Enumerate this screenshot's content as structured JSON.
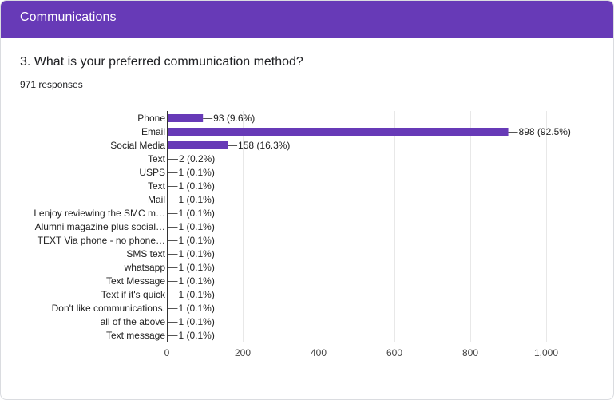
{
  "header": {
    "title": "Communications"
  },
  "question": {
    "title": "3. What is your preferred communication method?",
    "responses": "971 responses"
  },
  "colors": {
    "header": "#673ab7",
    "bar": "#673ab7",
    "grid": "#e8e8e8",
    "axis": "#333333"
  },
  "chart_data": {
    "type": "bar",
    "orientation": "horizontal",
    "title": "",
    "xlabel": "",
    "ylabel": "",
    "xlim": [
      0,
      1000
    ],
    "ticks": [
      0,
      200,
      400,
      600,
      800,
      1000
    ],
    "tick_labels": [
      "0",
      "200",
      "400",
      "600",
      "800",
      "1,000"
    ],
    "grid": true,
    "categories": [
      "Phone",
      "Email",
      "Social Media",
      "Text",
      "USPS",
      "Text",
      "Mail",
      "I enjoy reviewing the SMC m…",
      "Alumni magazine plus social…",
      "TEXT Via phone - no phone…",
      "SMS text",
      "whatsapp",
      "Text Message",
      "Text if it's quick",
      "Don't like communications.",
      "all of the above",
      "Text message"
    ],
    "values": [
      93,
      898,
      158,
      2,
      1,
      1,
      1,
      1,
      1,
      1,
      1,
      1,
      1,
      1,
      1,
      1,
      1
    ],
    "data_labels": [
      "93 (9.6%)",
      "898 (92.5%)",
      "158 (16.3%)",
      "2 (0.2%)",
      "1 (0.1%)",
      "1 (0.1%)",
      "1 (0.1%)",
      "1 (0.1%)",
      "1 (0.1%)",
      "1 (0.1%)",
      "1 (0.1%)",
      "1 (0.1%)",
      "1 (0.1%)",
      "1 (0.1%)",
      "1 (0.1%)",
      "1 (0.1%)",
      "1 (0.1%)"
    ]
  }
}
